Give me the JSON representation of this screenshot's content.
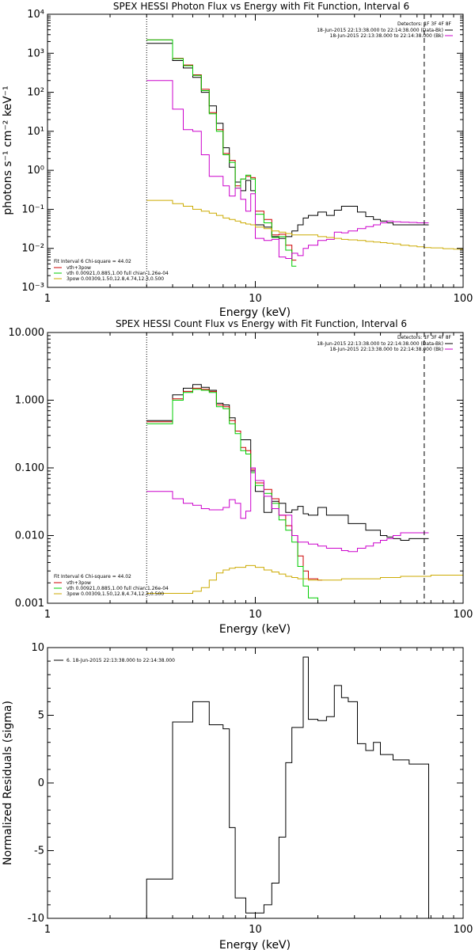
{
  "chart_data": [
    {
      "type": "line",
      "title": "SPEX HESSI Photon Flux vs Energy with Fit Function, Interval 6",
      "xlabel": "Energy (keV)",
      "ylabel": "photons s⁻¹ cm⁻² keV⁻¹",
      "xscale": "log",
      "yscale": "log",
      "xlim": [
        1,
        100
      ],
      "ylim": [
        0.001,
        10000
      ],
      "x_ticks": [
        1,
        10,
        100
      ],
      "x_tick_labels": [
        "1",
        "10",
        "100"
      ],
      "y_ticks": [
        0.001,
        0.01,
        0.1,
        1,
        10,
        100,
        1000,
        10000
      ],
      "y_tick_labels": [
        "10⁻³",
        "10⁻²",
        "10⁻¹",
        "10⁰",
        "10¹",
        "10²",
        "10³",
        "10⁴"
      ],
      "grid": false,
      "vlines": [
        {
          "x": 3,
          "style": "dotted"
        },
        {
          "x": 65,
          "style": "dashed"
        }
      ],
      "legend_right": {
        "header": "Detectors: 1F 3F 4F 8F",
        "entries": [
          {
            "label": "18-Jun-2015 22:13:38.000 to 22:14:38.000 (Data-Bk)",
            "color": "#000000"
          },
          {
            "label": "18-Jun-2015 22:13:38.000 to 22:14:38.000 (Bk)",
            "color": "#cc00cc"
          }
        ]
      },
      "legend_left": {
        "header": "Fit Interval 6   Chi-square = 44.02",
        "entries": [
          {
            "label": "vth+3pow",
            "color": "#cc0000"
          },
          {
            "label": "vth 0.00921,0.885,1.00  full chian 1.26e-04",
            "color": "#00cc00"
          },
          {
            "label": "3pow 0.00309,1.50,12.8,4.74,12.3,0.500",
            "color": "#ccaa00"
          }
        ]
      },
      "series": [
        {
          "color": "#000000",
          "x": [
            3.0,
            3.5,
            4.0,
            4.5,
            5.0,
            5.5,
            6.0,
            6.5,
            7.0,
            7.5,
            8.0,
            8.5,
            9.0,
            9.5,
            10.0,
            11.0,
            12.0,
            13.0,
            14.0,
            15.0,
            16.0,
            17.0,
            18.0,
            20.0,
            22.0,
            24.0,
            26.0,
            28.0,
            31.0,
            34.0,
            37.0,
            40.0,
            43.0,
            46.0,
            50.0,
            55.0,
            60.0,
            65.0
          ],
          "y": [
            1800,
            1800,
            650,
            420,
            240,
            100,
            45,
            16,
            3.8,
            1.2,
            0.5,
            0.3,
            0.55,
            0.3,
            0.04,
            0.035,
            0.02,
            0.018,
            0.02,
            0.028,
            0.04,
            0.06,
            0.07,
            0.085,
            0.07,
            0.095,
            0.12,
            0.12,
            0.085,
            0.065,
            0.055,
            0.05,
            0.045,
            0.04,
            0.04,
            0.04,
            0.04,
            0.04
          ]
        },
        {
          "color": "#cc0000",
          "x": [
            3.0,
            3.5,
            4.0,
            4.5,
            5.0,
            5.5,
            6.0,
            6.5,
            7.0,
            7.5,
            8.0,
            8.5,
            9.0,
            9.5,
            10.0,
            11.0,
            12.0,
            13.0,
            14.0,
            15.0
          ],
          "y": [
            2200,
            2200,
            740,
            500,
            280,
            120,
            30,
            11,
            2.7,
            1.8,
            0.4,
            0.6,
            0.7,
            0.65,
            0.09,
            0.055,
            0.022,
            0.023,
            0.012,
            0.005
          ]
        },
        {
          "color": "#00cc00",
          "x": [
            3.0,
            3.5,
            4.0,
            4.5,
            5.0,
            5.5,
            6.0,
            6.5,
            7.0,
            7.5,
            8.0,
            8.5,
            9.0,
            9.5,
            10.0,
            11.0,
            12.0,
            13.0,
            14.0,
            15.0
          ],
          "y": [
            2200,
            2200,
            720,
            480,
            270,
            110,
            28,
            10,
            2.5,
            1.6,
            0.35,
            0.6,
            0.75,
            0.6,
            0.075,
            0.045,
            0.019,
            0.02,
            0.009,
            0.0035
          ]
        },
        {
          "color": "#cc00cc",
          "x": [
            3.0,
            3.5,
            4.0,
            4.5,
            5.0,
            5.5,
            6.0,
            6.5,
            7.0,
            7.5,
            8.0,
            8.5,
            9.0,
            9.5,
            10.0,
            11.0,
            12.0,
            13.0,
            14.0,
            15.0,
            16.0,
            17.0,
            18.0,
            20.0,
            22.0,
            24.0,
            26.0,
            28.0,
            31.0,
            34.0,
            37.0,
            40.0,
            43.0,
            46.0,
            50.0,
            55.0,
            60.0,
            65.0
          ],
          "y": [
            200,
            200,
            37,
            11,
            10,
            2.5,
            0.7,
            0.7,
            0.4,
            0.22,
            0.35,
            0.18,
            0.09,
            0.25,
            0.018,
            0.016,
            0.017,
            0.006,
            0.0055,
            0.0075,
            0.0065,
            0.01,
            0.012,
            0.016,
            0.017,
            0.026,
            0.025,
            0.028,
            0.032,
            0.036,
            0.04,
            0.045,
            0.05,
            0.048,
            0.047,
            0.046,
            0.045,
            0.045
          ]
        },
        {
          "color": "#ccaa00",
          "x": [
            3.0,
            3.5,
            4.0,
            4.5,
            5.0,
            5.5,
            6.0,
            6.5,
            7.0,
            7.5,
            8.0,
            8.5,
            9.0,
            9.5,
            10.0,
            11.0,
            12.0,
            13.0,
            14.0,
            15.0,
            16.0,
            17.0,
            18.0,
            20.0,
            22.0,
            24.0,
            26.0,
            28.0,
            31.0,
            34.0,
            37.0,
            40.0,
            43.0,
            46.0,
            50.0,
            55.0,
            60.0,
            65.0,
            70.0,
            80.0,
            90.0,
            100.0
          ],
          "y": [
            0.17,
            0.17,
            0.14,
            0.12,
            0.1,
            0.09,
            0.08,
            0.07,
            0.06,
            0.055,
            0.05,
            0.045,
            0.042,
            0.04,
            0.035,
            0.032,
            0.028,
            0.026,
            0.024,
            0.022,
            0.022,
            0.022,
            0.022,
            0.02,
            0.019,
            0.018,
            0.017,
            0.0165,
            0.016,
            0.015,
            0.0145,
            0.014,
            0.0135,
            0.013,
            0.012,
            0.0115,
            0.011,
            0.0105,
            0.0103,
            0.0098,
            0.0095,
            0.0093
          ]
        }
      ]
    },
    {
      "type": "line",
      "title": "SPEX HESSI Count Flux vs Energy with Fit Function, Interval 6",
      "xlabel": "Energy (keV)",
      "ylabel": "",
      "xscale": "log",
      "yscale": "log",
      "xlim": [
        1,
        100
      ],
      "ylim": [
        0.001,
        10
      ],
      "x_ticks": [
        1,
        10,
        100
      ],
      "x_tick_labels": [
        "1",
        "10",
        "100"
      ],
      "y_ticks": [
        0.001,
        0.01,
        0.1,
        1,
        10
      ],
      "y_tick_labels": [
        "0.001",
        "0.010",
        "0.100",
        "1.000",
        "10.000"
      ],
      "grid": false,
      "vlines": [
        {
          "x": 3,
          "style": "dotted"
        },
        {
          "x": 65,
          "style": "dashed"
        }
      ],
      "legend_right": {
        "header": "Detectors: 1F 3F 4F 8F",
        "entries": [
          {
            "label": "18-Jun-2015 22:13:38.000 to 22:14:38.000 (Data-Bk)",
            "color": "#000000"
          },
          {
            "label": "18-Jun-2015 22:13:38.000 to 22:14:38.000 (Bk)",
            "color": "#cc00cc"
          }
        ]
      },
      "legend_left": {
        "header": "Fit Interval 6   Chi-square = 44.02",
        "entries": [
          {
            "label": "vth+3pow",
            "color": "#cc0000"
          },
          {
            "label": "vth 0.00921,0.885,1.00  full chian 1.26e-04",
            "color": "#00cc00"
          },
          {
            "label": "3pow 0.00309,1.50,12.8,4.74,12.3,0.500",
            "color": "#ccaa00"
          }
        ]
      },
      "series": [
        {
          "color": "#000000",
          "x": [
            3.0,
            3.5,
            4.0,
            4.5,
            5.0,
            5.5,
            6.0,
            6.5,
            7.0,
            7.5,
            8.0,
            8.5,
            9.0,
            9.5,
            10.0,
            11.0,
            12.0,
            13.0,
            14.0,
            15.0,
            16.0,
            17.0,
            18.0,
            20.0,
            22.0,
            24.0,
            26.0,
            28.0,
            31.0,
            34.0,
            37.0,
            40.0,
            43.0,
            46.0,
            50.0,
            55.0,
            60.0,
            65.0
          ],
          "y": [
            0.5,
            0.5,
            1.2,
            1.5,
            1.7,
            1.55,
            1.4,
            0.9,
            0.85,
            0.55,
            0.35,
            0.26,
            0.26,
            0.09,
            0.045,
            0.022,
            0.032,
            0.03,
            0.022,
            0.024,
            0.027,
            0.021,
            0.02,
            0.026,
            0.02,
            0.02,
            0.02,
            0.015,
            0.015,
            0.012,
            0.012,
            0.01,
            0.0095,
            0.009,
            0.0085,
            0.009,
            0.009,
            0.009
          ]
        },
        {
          "color": "#cc0000",
          "x": [
            3.0,
            3.5,
            4.0,
            4.5,
            5.0,
            5.5,
            6.0,
            6.5,
            7.0,
            7.5,
            8.0,
            8.5,
            9.0,
            9.5,
            10.0,
            11.0,
            12.0,
            13.0,
            14.0,
            15.0,
            16.0,
            17.0,
            18.0,
            20.0
          ],
          "y": [
            0.48,
            0.48,
            1.05,
            1.35,
            1.5,
            1.45,
            1.35,
            0.85,
            0.8,
            0.5,
            0.35,
            0.2,
            0.18,
            0.095,
            0.06,
            0.048,
            0.035,
            0.02,
            0.014,
            0.01,
            0.005,
            0.003,
            0.0023,
            0.0022
          ]
        },
        {
          "color": "#00cc00",
          "x": [
            3.0,
            3.5,
            4.0,
            4.5,
            5.0,
            5.5,
            6.0,
            6.5,
            7.0,
            7.5,
            8.0,
            8.5,
            9.0,
            9.5,
            10.0,
            11.0,
            12.0,
            13.0,
            14.0,
            15.0,
            16.0,
            17.0,
            18.0,
            20.0
          ],
          "y": [
            0.45,
            0.45,
            1.0,
            1.3,
            1.45,
            1.4,
            1.3,
            0.8,
            0.75,
            0.45,
            0.32,
            0.18,
            0.16,
            0.085,
            0.055,
            0.042,
            0.03,
            0.017,
            0.012,
            0.008,
            0.0035,
            0.0018,
            0.0012,
            0.0009
          ]
        },
        {
          "color": "#cc00cc",
          "x": [
            3.0,
            3.5,
            4.0,
            4.5,
            5.0,
            5.5,
            6.0,
            6.5,
            7.0,
            7.5,
            8.0,
            8.5,
            9.0,
            9.5,
            10.0,
            11.0,
            12.0,
            13.0,
            14.0,
            15.0,
            16.0,
            17.0,
            18.0,
            20.0,
            22.0,
            24.0,
            26.0,
            28.0,
            31.0,
            34.0,
            37.0,
            40.0,
            43.0,
            46.0,
            50.0,
            55.0,
            60.0,
            65.0
          ],
          "y": [
            0.045,
            0.045,
            0.035,
            0.03,
            0.028,
            0.025,
            0.024,
            0.024,
            0.026,
            0.034,
            0.03,
            0.018,
            0.023,
            0.1,
            0.065,
            0.038,
            0.025,
            0.02,
            0.02,
            0.01,
            0.008,
            0.008,
            0.0075,
            0.007,
            0.0065,
            0.0065,
            0.006,
            0.0058,
            0.0065,
            0.007,
            0.0078,
            0.0085,
            0.009,
            0.01,
            0.011,
            0.011,
            0.011,
            0.011
          ]
        },
        {
          "color": "#ccaa00",
          "x": [
            3.0,
            3.5,
            4.0,
            4.5,
            5.0,
            5.5,
            6.0,
            6.5,
            7.0,
            7.5,
            8.0,
            8.5,
            9.0,
            9.5,
            10.0,
            11.0,
            12.0,
            13.0,
            14.0,
            15.0,
            16.0,
            17.0,
            18.0,
            20.0,
            22.0,
            24.0,
            26.0,
            28.0,
            31.0,
            34.0,
            37.0,
            40.0,
            43.0,
            46.0,
            50.0,
            55.0,
            60.0,
            65.0,
            70.0,
            80.0,
            90.0,
            100.0
          ],
          "y": [
            0.0014,
            0.0014,
            0.0014,
            0.0014,
            0.0015,
            0.0017,
            0.0022,
            0.0028,
            0.0031,
            0.0033,
            0.0034,
            0.0034,
            0.0036,
            0.0036,
            0.0034,
            0.0031,
            0.0029,
            0.0027,
            0.0025,
            0.0024,
            0.0023,
            0.0023,
            0.0022,
            0.0022,
            0.0022,
            0.0022,
            0.0023,
            0.0023,
            0.0023,
            0.0023,
            0.0023,
            0.0024,
            0.0024,
            0.0024,
            0.0025,
            0.0025,
            0.0025,
            0.0025,
            0.0026,
            0.0026,
            0.0026,
            0.0027
          ]
        }
      ]
    },
    {
      "type": "line",
      "title": "",
      "xlabel": "Energy (keV)",
      "ylabel": "Normalized Residuals (sigma)",
      "xscale": "log",
      "yscale": "linear",
      "xlim": [
        1,
        100
      ],
      "ylim": [
        -10,
        10
      ],
      "x_ticks": [
        1,
        10,
        100
      ],
      "x_tick_labels": [
        "1",
        "10",
        "100"
      ],
      "y_ticks": [
        -10,
        -5,
        0,
        5,
        10
      ],
      "y_tick_labels": [
        "-10",
        "-5",
        "0",
        "5",
        "10"
      ],
      "grid": false,
      "legend": [
        {
          "label": "6. 18-Jun-2015 22:13:38.000 to 22:14:38.000",
          "color": "#000000"
        }
      ],
      "series": [
        {
          "color": "#000000",
          "x": [
            3.0,
            3.5,
            4.0,
            4.5,
            5.0,
            5.5,
            6.0,
            6.5,
            7.0,
            7.5,
            8.0,
            8.5,
            9.0,
            9.5,
            10.0,
            11.0,
            12.0,
            13.0,
            14.0,
            15.0,
            16.0,
            17.0,
            18.0,
            20.0,
            22.0,
            24.0,
            26.0,
            28.0,
            31.0,
            34.0,
            37.0,
            40.0,
            43.0,
            46.0,
            50.0,
            55.0,
            60.0,
            65.0
          ],
          "y": [
            -7.1,
            -7.1,
            4.5,
            4.5,
            6.0,
            6.0,
            4.3,
            4.3,
            4.0,
            -3.3,
            -8.5,
            -8.5,
            -9.6,
            -9.6,
            -9.6,
            -9.0,
            -7.4,
            -4.0,
            1.5,
            4.1,
            4.1,
            9.3,
            4.7,
            4.6,
            4.9,
            7.2,
            6.3,
            6.0,
            2.9,
            2.4,
            3.0,
            2.1,
            2.1,
            1.7,
            1.7,
            1.4,
            1.4,
            1.4
          ]
        }
      ]
    }
  ]
}
